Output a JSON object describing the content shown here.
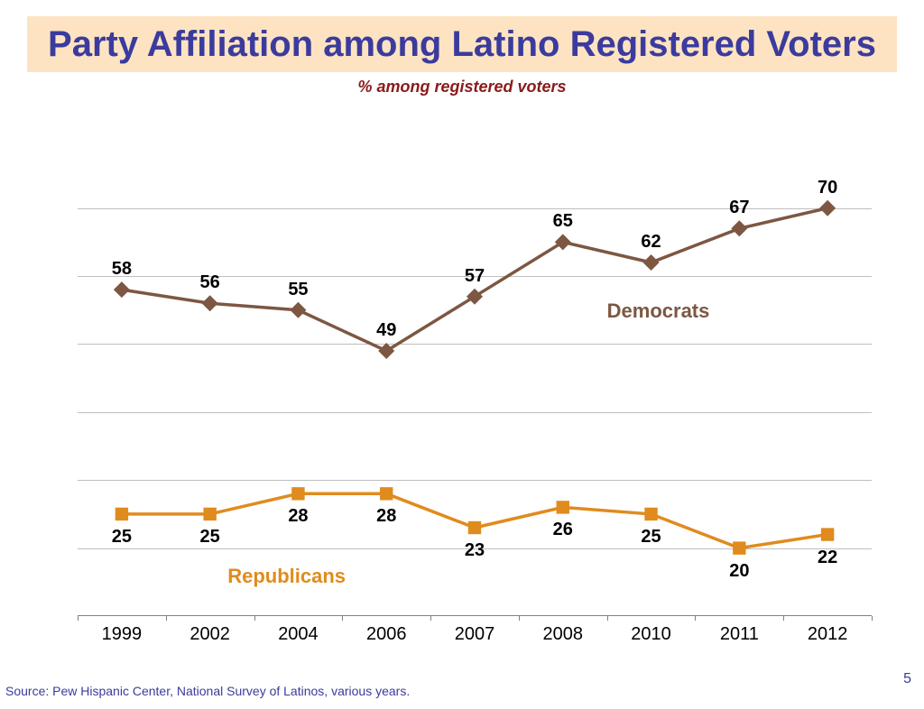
{
  "title": "Party Affiliation among Latino Registered Voters",
  "subtitle": "% among registered voters",
  "title_banner_bg": "#fde3c1",
  "title_text_color": "#3b3b9e",
  "title_fontsize": 40,
  "subtitle_color": "#8b1a1a",
  "subtitle_fontsize": 18,
  "source_text": "Source: Pew Hispanic Center, National Survey of Latinos, various years.",
  "source_color": "#3b3b9e",
  "page_number": "5",
  "page_number_color": "#3b3b9e",
  "chart": {
    "type": "line",
    "categories": [
      "1999",
      "2002",
      "2004",
      "2006",
      "2007",
      "2008",
      "2010",
      "2011",
      "2012"
    ],
    "ylim": [
      10,
      75
    ],
    "ytick_step": 10,
    "grid_color": "#bfbfbf",
    "background": "#ffffff",
    "x_label_fontsize": 20,
    "data_label_fontsize": 20,
    "series": [
      {
        "name": "Democrats",
        "values": [
          58,
          56,
          55,
          49,
          57,
          65,
          62,
          67,
          70
        ],
        "color": "#7d5742",
        "marker": "diamond",
        "marker_size": 9,
        "line_width": 3.5,
        "label_position": "above",
        "series_label_x": 6.0,
        "series_label_y": 55
      },
      {
        "name": "Republicans",
        "values": [
          25,
          25,
          28,
          28,
          23,
          26,
          25,
          20,
          22
        ],
        "color": "#e08b1e",
        "marker": "square",
        "marker_size": 9,
        "line_width": 3.5,
        "label_position": "below",
        "series_label_x": 1.7,
        "series_label_y": 16
      }
    ]
  }
}
